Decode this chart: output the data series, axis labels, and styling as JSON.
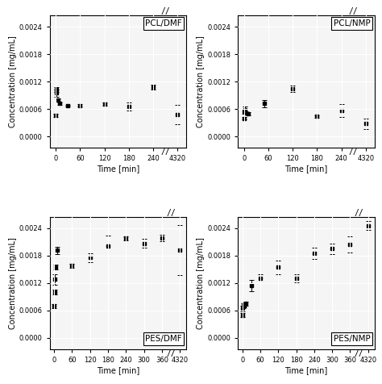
{
  "panels": [
    {
      "label": "PCL/DMF",
      "label_pos": "upper right",
      "x": [
        0,
        1,
        2,
        5,
        10,
        30,
        60,
        120,
        180,
        240,
        4320
      ],
      "y": [
        0.00046,
        0.00103,
        0.00095,
        0.0008,
        0.00072,
        0.00068,
        0.00068,
        0.00071,
        0.00065,
        0.00108,
        0.00048
      ],
      "yerr": [
        3e-05,
        5e-05,
        8e-05,
        4e-05,
        3e-05,
        2e-05,
        3e-05,
        3e-05,
        9e-05,
        6e-05,
        0.00022
      ],
      "xticks": [
        0,
        60,
        120,
        180,
        240,
        4320
      ],
      "yticks": [
        0.0,
        0.0006,
        0.0012,
        0.0018,
        0.0024
      ],
      "ylim": [
        -0.00025,
        0.00265
      ],
      "xlabel": "Time [min]",
      "ylabel": "Concentration [mg/mL]"
    },
    {
      "label": "PCL/NMP",
      "label_pos": "upper right",
      "x": [
        0,
        1,
        2,
        5,
        10,
        50,
        120,
        180,
        240,
        4320
      ],
      "y": [
        0.0004,
        0.00055,
        0.00058,
        0.00052,
        0.0005,
        0.00072,
        0.00105,
        0.00044,
        0.00057,
        0.00028
      ],
      "yerr": [
        3e-05,
        5e-05,
        7e-05,
        3e-05,
        4e-05,
        8e-05,
        7e-05,
        3e-05,
        0.00014,
        0.00012
      ],
      "xticks": [
        0,
        60,
        120,
        180,
        240,
        4320
      ],
      "yticks": [
        0.0,
        0.0006,
        0.0012,
        0.0018,
        0.0024
      ],
      "ylim": [
        -0.00025,
        0.00265
      ],
      "xlabel": "Time [min]",
      "ylabel": "Concentration [mg/mL]"
    },
    {
      "label": "PES/DMF",
      "label_pos": "lower right",
      "x": [
        0,
        1,
        2,
        5,
        10,
        60,
        120,
        180,
        240,
        300,
        360,
        4320
      ],
      "y": [
        0.0007,
        0.001,
        0.00128,
        0.00155,
        0.00192,
        0.00158,
        0.00176,
        0.00202,
        0.00218,
        0.00207,
        0.00218,
        0.00192
      ],
      "yerr": [
        4e-05,
        5e-05,
        0.00012,
        5e-05,
        8e-05,
        5e-05,
        0.0001,
        0.00022,
        5e-05,
        0.0001,
        7e-05,
        0.00055
      ],
      "xticks": [
        0,
        60,
        120,
        180,
        240,
        300,
        360,
        4320
      ],
      "yticks": [
        0.0,
        0.0006,
        0.0012,
        0.0018,
        0.0024
      ],
      "ylim": [
        -0.00025,
        0.00265
      ],
      "xlabel": "Time [min]",
      "ylabel": "Concentration [mg/mL]"
    },
    {
      "label": "PES/NMP",
      "label_pos": "lower right",
      "x": [
        0,
        1,
        2,
        5,
        10,
        30,
        60,
        120,
        180,
        240,
        300,
        360,
        4320
      ],
      "y": [
        0.0005,
        0.00065,
        0.0007,
        0.00072,
        0.00075,
        0.00115,
        0.0013,
        0.00155,
        0.0013,
        0.00185,
        0.00195,
        0.00205,
        0.00246
      ],
      "yerr": [
        5e-05,
        6e-05,
        5e-05,
        5e-05,
        5e-05,
        0.00012,
        0.0001,
        0.00015,
        9e-05,
        0.00012,
        0.00012,
        0.00018,
        0.0001
      ],
      "xticks": [
        0,
        60,
        120,
        180,
        240,
        300,
        360,
        4320
      ],
      "yticks": [
        0.0,
        0.0006,
        0.0012,
        0.0018,
        0.0024
      ],
      "ylim": [
        -0.00025,
        0.00265
      ],
      "xlabel": "Time [min]",
      "ylabel": "Concentration [mg/mL]"
    }
  ],
  "bg_color": "#f5f5f5",
  "marker": "s",
  "markersize": 3.5,
  "color": "black",
  "grid_color": "white",
  "grid_lw": 0.8,
  "capsize": 2,
  "elinewidth": 0.7,
  "capthick": 0.7
}
